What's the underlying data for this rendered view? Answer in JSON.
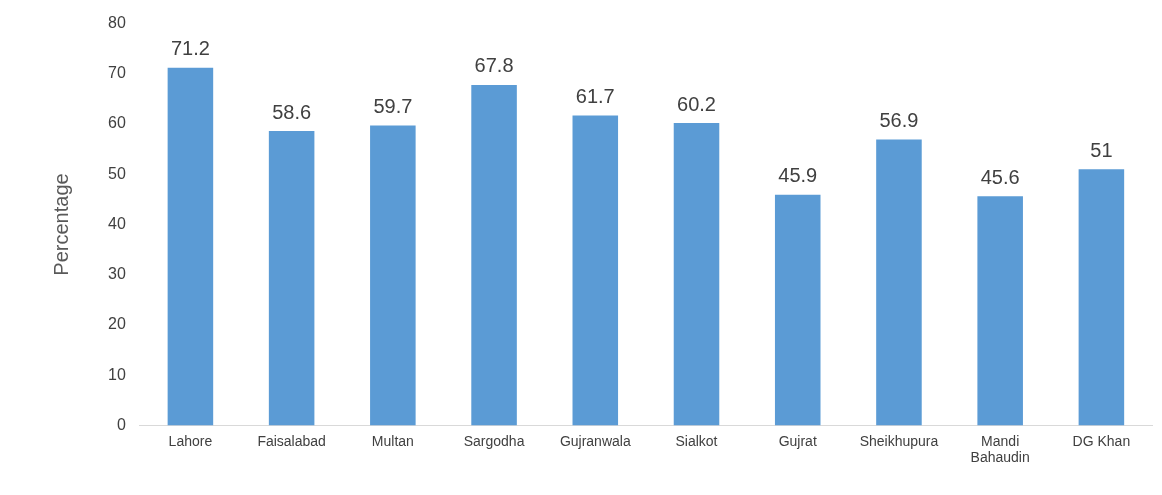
{
  "chart_data": {
    "type": "bar",
    "ylabel": "Percentage",
    "categories": [
      "Lahore",
      "Faisalabad",
      "Multan",
      "Sargodha",
      "Gujranwala",
      "Sialkot",
      "Gujrat",
      "Sheikhupura",
      "Mandi Bahaudin",
      "DG Khan"
    ],
    "values": [
      71.2,
      58.6,
      59.7,
      67.8,
      61.7,
      60.2,
      45.9,
      56.9,
      45.6,
      51
    ],
    "color": "#5b9bd5",
    "ylim": [
      0,
      80
    ],
    "yticks": [
      0,
      10,
      20,
      30,
      40,
      50,
      60,
      70,
      80
    ],
    "grid": false,
    "legend": false,
    "data_labels": true
  }
}
